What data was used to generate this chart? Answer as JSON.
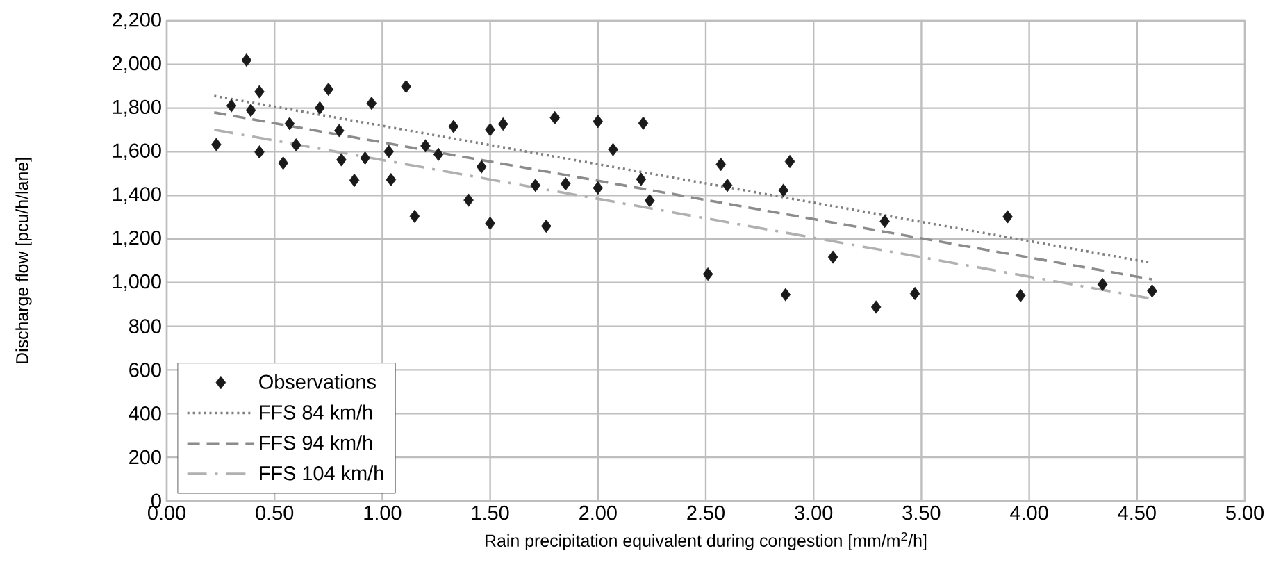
{
  "chart_data": {
    "type": "scatter",
    "xlabel": "Rain precipitation equivalent during congestion [mm/m$^{2}$/h]",
    "ylabel": "Discharge flow [pcu/h/lane]",
    "xlim": [
      0,
      5
    ],
    "ylim": [
      0,
      2200
    ],
    "xticks": [
      {
        "value": 0,
        "label": "0.00"
      },
      {
        "value": 0.5,
        "label": "0.50"
      },
      {
        "value": 1,
        "label": "1.00"
      },
      {
        "value": 1.5,
        "label": "1.50"
      },
      {
        "value": 2,
        "label": "2.00"
      },
      {
        "value": 2.5,
        "label": "2.50"
      },
      {
        "value": 3,
        "label": "3.00"
      },
      {
        "value": 3.5,
        "label": "3.50"
      },
      {
        "value": 4,
        "label": "4.00"
      },
      {
        "value": 4.5,
        "label": "4.50"
      },
      {
        "value": 5,
        "label": "5.00"
      }
    ],
    "yticks": [
      0,
      200,
      400,
      600,
      800,
      {
        "value": 1000,
        "label": "1,000"
      },
      {
        "value": 1200,
        "label": "1,200"
      },
      {
        "value": 1400,
        "label": "1,400"
      },
      {
        "value": 1600,
        "label": "1,600"
      },
      {
        "value": 1800,
        "label": "1,800"
      },
      {
        "value": 2000,
        "label": "2,000"
      },
      {
        "value": 2200,
        "label": "2,200"
      }
    ],
    "grid": true,
    "legend": "bottom left",
    "series": [
      {
        "name": "Observations",
        "marker": "diamond",
        "color": "#1a1a1a",
        "x": [
          0.23,
          0.3,
          0.37,
          0.39,
          0.43,
          0.43,
          0.54,
          0.57,
          0.6,
          0.71,
          0.75,
          0.8,
          0.81,
          0.87,
          0.92,
          0.95,
          1.03,
          1.04,
          1.11,
          1.15,
          1.2,
          1.26,
          1.33,
          1.4,
          1.46,
          1.5,
          1.5,
          1.56,
          1.71,
          1.76,
          1.8,
          1.85,
          2.0,
          2.0,
          2.07,
          2.2,
          2.21,
          2.24,
          2.51,
          2.57,
          2.6,
          2.86,
          2.87,
          2.89,
          3.09,
          3.29,
          3.33,
          3.47,
          3.9,
          3.96,
          4.34,
          4.57
        ],
        "values": [
          1633,
          1811,
          2020,
          1790,
          1875,
          1599,
          1548,
          1729,
          1631,
          1801,
          1886,
          1697,
          1563,
          1469,
          1571,
          1822,
          1601,
          1472,
          1899,
          1304,
          1627,
          1588,
          1716,
          1378,
          1531,
          1272,
          1701,
          1727,
          1446,
          1259,
          1756,
          1453,
          1739,
          1434,
          1610,
          1474,
          1731,
          1376,
          1039,
          1542,
          1446,
          1423,
          945,
          1555,
          1117,
          888,
          1281,
          950,
          1302,
          941,
          992,
          962
        ]
      },
      {
        "name": "FFS 84 km/h",
        "type": "line",
        "line_style": "dotted",
        "color": "#7f7f7f",
        "x": [
          0.22,
          4.56
        ],
        "values": [
          1856,
          1092
        ]
      },
      {
        "name": "FFS 94 km/h",
        "type": "line",
        "line_style": "dashed",
        "color": "#8c8c8c",
        "x": [
          0.22,
          4.57
        ],
        "values": [
          1780,
          1015
        ]
      },
      {
        "name": "FFS 104 km/h",
        "type": "line",
        "line_style": "dashdot",
        "color": "#b0b0b0",
        "x": [
          0.22,
          4.57
        ],
        "values": [
          1701,
          926
        ]
      }
    ]
  }
}
